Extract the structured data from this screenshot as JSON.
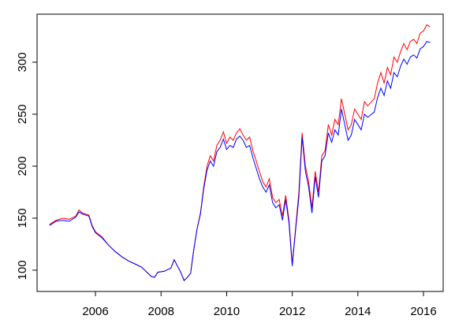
{
  "chart_data": {
    "type": "line",
    "x": [
      2004.6,
      2004.8,
      2005.0,
      2005.2,
      2005.4,
      2005.5,
      2005.6,
      2005.8,
      2005.9,
      2006.0,
      2006.2,
      2006.4,
      2006.6,
      2006.8,
      2007.0,
      2007.2,
      2007.4,
      2007.6,
      2007.7,
      2007.8,
      2007.9,
      2008.1,
      2008.3,
      2008.4,
      2008.5,
      2008.6,
      2008.7,
      2008.8,
      2008.9,
      2009.0,
      2009.1,
      2009.2,
      2009.3,
      2009.4,
      2009.5,
      2009.6,
      2009.7,
      2009.8,
      2009.9,
      2010.0,
      2010.1,
      2010.2,
      2010.3,
      2010.4,
      2010.5,
      2010.6,
      2010.7,
      2010.8,
      2010.9,
      2011.0,
      2011.1,
      2011.2,
      2011.3,
      2011.4,
      2011.5,
      2011.6,
      2011.7,
      2011.8,
      2011.9,
      2012.0,
      2012.1,
      2012.2,
      2012.3,
      2012.4,
      2012.5,
      2012.6,
      2012.7,
      2012.8,
      2012.9,
      2013.0,
      2013.1,
      2013.2,
      2013.3,
      2013.4,
      2013.5,
      2013.6,
      2013.7,
      2013.8,
      2013.9,
      2014.0,
      2014.1,
      2014.2,
      2014.3,
      2014.5,
      2014.6,
      2014.7,
      2014.8,
      2014.9,
      2015.0,
      2015.1,
      2015.2,
      2015.3,
      2015.4,
      2015.5,
      2015.6,
      2015.7,
      2015.8,
      2015.9,
      2016.0,
      2016.1,
      2016.2
    ],
    "series": [
      {
        "color": "#ff0000",
        "values": [
          144,
          148,
          150,
          149,
          152,
          158,
          155,
          153,
          143,
          137,
          132,
          124,
          118,
          113,
          109,
          106,
          103,
          97,
          94,
          93,
          98,
          99,
          102,
          110,
          104,
          98,
          90,
          93,
          97,
          120,
          140,
          155,
          180,
          200,
          210,
          205,
          220,
          225,
          233,
          222,
          228,
          225,
          232,
          236,
          230,
          225,
          228,
          215,
          205,
          195,
          185,
          180,
          188,
          170,
          165,
          168,
          152,
          172,
          148,
          106,
          140,
          175,
          232,
          200,
          185,
          160,
          195,
          175,
          210,
          215,
          240,
          230,
          245,
          240,
          265,
          250,
          235,
          240,
          255,
          250,
          245,
          262,
          258,
          265,
          280,
          290,
          280,
          295,
          288,
          305,
          300,
          310,
          318,
          312,
          320,
          322,
          318,
          328,
          330,
          336,
          334
        ]
      },
      {
        "color": "#0000ff",
        "values": [
          143,
          147,
          148,
          147,
          151,
          156,
          154,
          152,
          142,
          136,
          131,
          124,
          118,
          113,
          109,
          106,
          103,
          97,
          94,
          93,
          98,
          99,
          102,
          110,
          104,
          98,
          90,
          93,
          97,
          120,
          140,
          154,
          178,
          196,
          205,
          200,
          214,
          218,
          226,
          216,
          220,
          218,
          226,
          229,
          225,
          218,
          220,
          208,
          198,
          188,
          180,
          175,
          182,
          165,
          160,
          163,
          148,
          168,
          145,
          104,
          138,
          170,
          228,
          195,
          180,
          155,
          190,
          170,
          205,
          210,
          232,
          223,
          235,
          230,
          255,
          240,
          225,
          230,
          245,
          240,
          235,
          250,
          247,
          252,
          266,
          275,
          268,
          282,
          275,
          290,
          286,
          296,
          303,
          298,
          305,
          307,
          304,
          313,
          315,
          320,
          319
        ]
      }
    ],
    "xlim": [
      2004.22,
      2016.6
    ],
    "xticks": [
      2006,
      2008,
      2010,
      2012,
      2014,
      2016
    ],
    "ylim": [
      79.5,
      346.2
    ],
    "yticks": [
      100,
      150,
      200,
      250,
      300
    ]
  }
}
